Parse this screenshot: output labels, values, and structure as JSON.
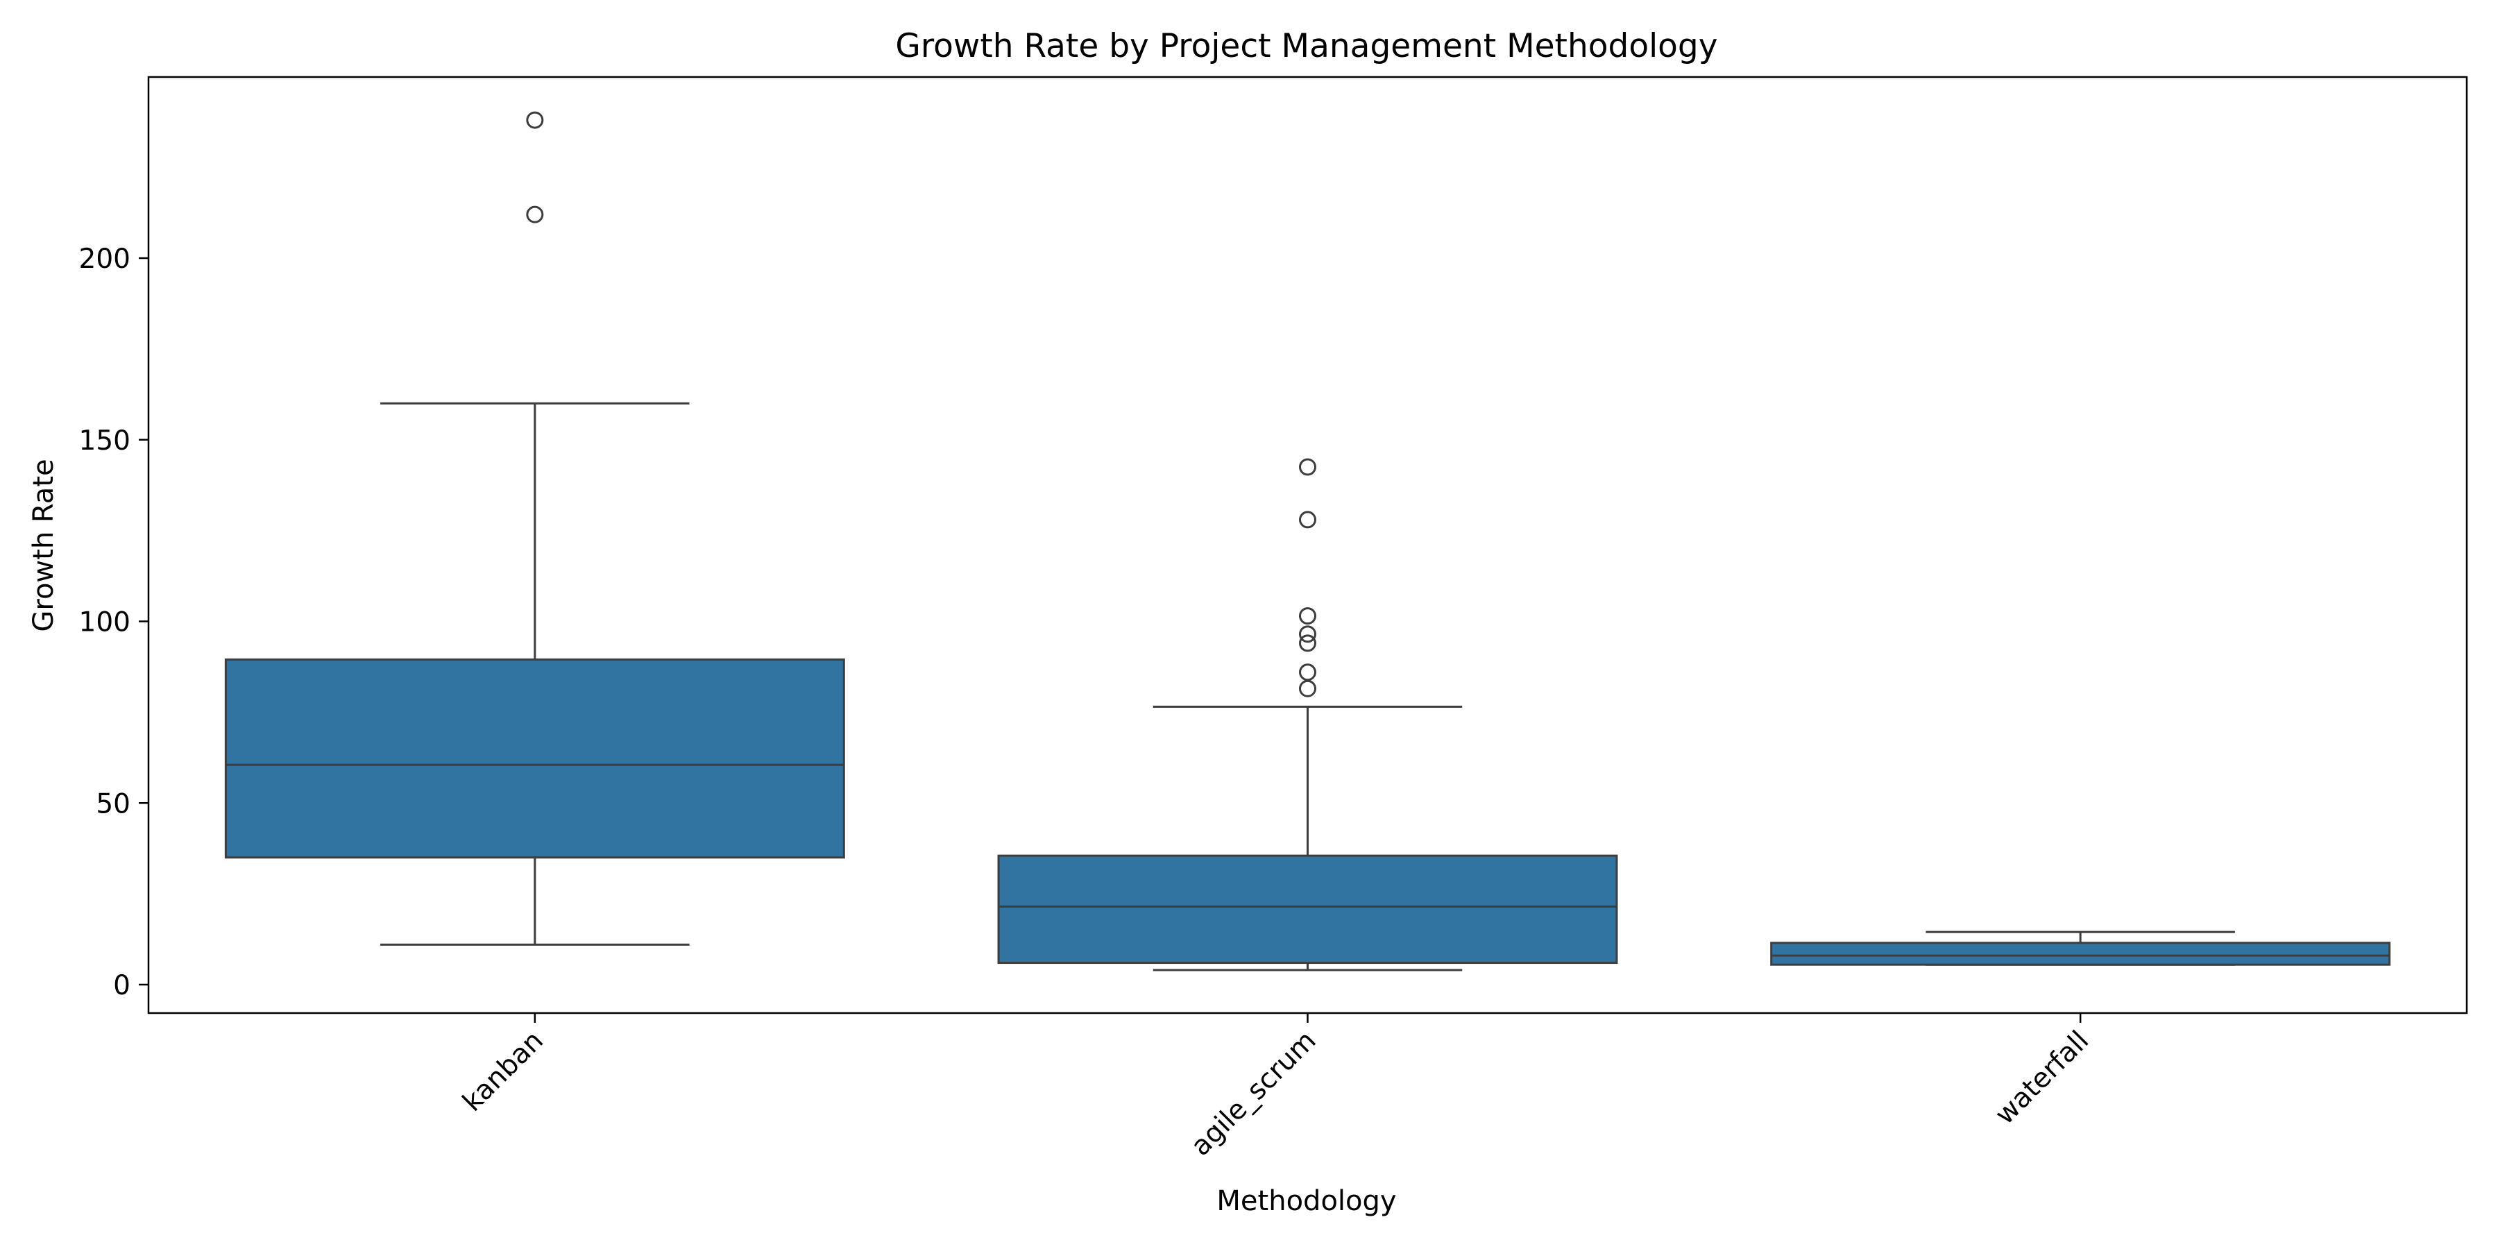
{
  "chart_data": {
    "type": "box",
    "title": "Growth Rate by Project Management Methodology",
    "xlabel": "Methodology",
    "ylabel": "Growth Rate",
    "ylim": [
      -8,
      250
    ],
    "yticks": [
      0,
      50,
      100,
      150,
      200
    ],
    "grid": false,
    "legend": "none",
    "box_color": "#3274a1",
    "line_color": "#3d3d3d",
    "categories": [
      "kanban",
      "agile_scrum",
      "waterfall"
    ],
    "boxes": [
      {
        "category": "kanban",
        "whisker_low": 11,
        "q1": 35,
        "median": 60.5,
        "q3": 89.5,
        "whisker_high": 160,
        "outliers": [
          212,
          238
        ]
      },
      {
        "category": "agile_scrum",
        "whisker_low": 4,
        "q1": 6,
        "median": 21.5,
        "q3": 35.5,
        "whisker_high": 76.5,
        "outliers": [
          81.5,
          86,
          94,
          96.5,
          101.5,
          128,
          142.5
        ]
      },
      {
        "category": "waterfall",
        "whisker_low": 5.5,
        "q1": 5.5,
        "median": 8,
        "q3": 11.5,
        "whisker_high": 14.5,
        "outliers": []
      }
    ]
  }
}
